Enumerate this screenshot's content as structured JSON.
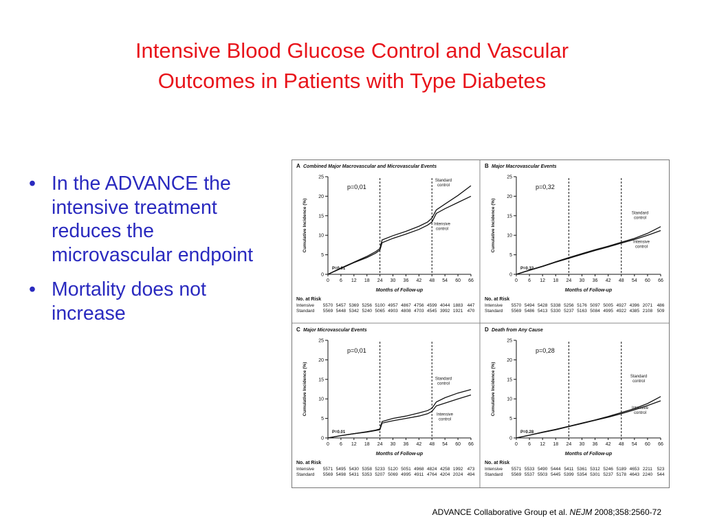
{
  "slide": {
    "title_line1": "Intensive Blood Glucose Control and Vascular",
    "title_line2": "Outcomes in Patients with Type Diabetes",
    "bullets": [
      "In the ADVANCE the intensive treatment reduces the microvascular endpoint",
      "Mortality does not increase"
    ],
    "citation": {
      "authors": "ADVANCE Collaborative Group  et al.",
      "journal": "NEJM",
      "ref": "2008;358:2560-72"
    }
  },
  "colors": {
    "title": "#e8141b",
    "bullet_text": "#2a2abf",
    "lines": "#111111"
  },
  "chart_data": [
    {
      "type": "line",
      "panel": "A",
      "title": "Combined Major Macrovascular and Microvascular Events",
      "xlabel": "Months of Follow-up",
      "ylabel": "Cumulative Incidence (%)",
      "xlim": [
        0,
        66
      ],
      "ylim": [
        0,
        25
      ],
      "xticks": [
        0,
        6,
        12,
        18,
        24,
        30,
        36,
        42,
        48,
        54,
        60,
        66
      ],
      "yticks": [
        0,
        5,
        10,
        15,
        20,
        25
      ],
      "vlines": [
        24,
        48
      ],
      "p_label": "p=0,01",
      "p_inner": "P=0.01",
      "series": [
        {
          "name": "Standard control",
          "x": [
            0,
            6,
            12,
            18,
            22,
            24,
            25,
            30,
            36,
            42,
            46,
            48,
            50,
            54,
            60,
            66
          ],
          "y": [
            0,
            1.6,
            3.1,
            4.6,
            5.8,
            6.6,
            8.8,
            9.9,
            11.0,
            12.3,
            13.4,
            14.4,
            16.5,
            18.0,
            20.2,
            22.7
          ]
        },
        {
          "name": "Intensive control",
          "x": [
            0,
            6,
            12,
            18,
            22,
            24,
            25,
            30,
            36,
            42,
            46,
            48,
            50,
            54,
            60,
            66
          ],
          "y": [
            0,
            1.5,
            3.0,
            4.3,
            5.4,
            6.2,
            8.1,
            9.2,
            10.3,
            11.5,
            12.6,
            13.4,
            15.6,
            16.8,
            18.4,
            20.0
          ]
        }
      ],
      "at_risk": {
        "header": "No. at Risk",
        "rows": [
          {
            "label": "Intensive",
            "values": [
              "5570",
              "5457",
              "5369",
              "5256",
              "5100",
              "4957",
              "4867",
              "4756",
              "4599",
              "4044",
              "1883",
              "447"
            ]
          },
          {
            "label": "Standard",
            "values": [
              "5569",
              "5448",
              "5342",
              "5240",
              "5065",
              "4903",
              "4808",
              "4703",
              "4545",
              "3992",
              "1921",
              "470"
            ]
          }
        ]
      }
    },
    {
      "type": "line",
      "panel": "B",
      "title": "Major Macrovascular Events",
      "xlabel": "Months of Follow-up",
      "ylabel": "Cumulative Incidence (%)",
      "xlim": [
        0,
        66
      ],
      "ylim": [
        0,
        25
      ],
      "xticks": [
        0,
        6,
        12,
        18,
        24,
        30,
        36,
        42,
        48,
        54,
        60,
        66
      ],
      "yticks": [
        0,
        5,
        10,
        15,
        20,
        25
      ],
      "vlines": [
        24,
        48
      ],
      "p_label": "p=0,32",
      "p_inner": "P=0.32",
      "series": [
        {
          "name": "Standard control",
          "x": [
            0,
            6,
            12,
            18,
            24,
            30,
            36,
            42,
            48,
            54,
            60,
            66
          ],
          "y": [
            0,
            1.1,
            2.1,
            3.2,
            4.3,
            5.3,
            6.3,
            7.2,
            8.2,
            9.2,
            10.5,
            12.2
          ]
        },
        {
          "name": "Intensive control",
          "x": [
            0,
            6,
            12,
            18,
            24,
            30,
            36,
            42,
            48,
            54,
            60,
            66
          ],
          "y": [
            0,
            1.0,
            2.0,
            3.1,
            4.1,
            5.1,
            6.1,
            7.0,
            8.0,
            8.9,
            10.0,
            11.2
          ]
        }
      ],
      "at_risk": {
        "header": "No. at Risk",
        "rows": [
          {
            "label": "Intensive",
            "values": [
              "5570",
              "5494",
              "5428",
              "5338",
              "5256",
              "5176",
              "5097",
              "5005",
              "4927",
              "4396",
              "2071",
              "486"
            ]
          },
          {
            "label": "Standard",
            "values": [
              "5569",
              "5486",
              "5413",
              "5330",
              "5237",
              "5163",
              "5084",
              "4995",
              "4922",
              "4385",
              "2108",
              "509"
            ]
          }
        ]
      }
    },
    {
      "type": "line",
      "panel": "C",
      "title": "Major Microvascular Events",
      "xlabel": "Months of Follow-up",
      "ylabel": "Cumulative Incidence (%)",
      "xlim": [
        0,
        66
      ],
      "ylim": [
        0,
        25
      ],
      "xticks": [
        0,
        6,
        12,
        18,
        24,
        30,
        36,
        42,
        48,
        54,
        60,
        66
      ],
      "yticks": [
        0,
        5,
        10,
        15,
        20,
        25
      ],
      "vlines": [
        24,
        48
      ],
      "p_label": "p=0,01",
      "p_inner": "P=0.01",
      "series": [
        {
          "name": "Standard control",
          "x": [
            0,
            6,
            12,
            18,
            22,
            24,
            25,
            30,
            36,
            42,
            46,
            48,
            50,
            54,
            60,
            66
          ],
          "y": [
            0,
            0.6,
            1.1,
            1.6,
            2.0,
            2.3,
            4.2,
            5.0,
            5.6,
            6.4,
            7.0,
            7.6,
            9.2,
            10.3,
            11.5,
            12.4
          ]
        },
        {
          "name": "Intensive control",
          "x": [
            0,
            6,
            12,
            18,
            22,
            24,
            25,
            30,
            36,
            42,
            46,
            48,
            50,
            54,
            60,
            66
          ],
          "y": [
            0,
            0.6,
            1.1,
            1.5,
            1.9,
            2.1,
            3.8,
            4.4,
            5.0,
            5.6,
            6.2,
            6.8,
            8.2,
            8.9,
            10.0,
            11.0
          ]
        }
      ],
      "at_risk": {
        "header": "No. at Risk",
        "rows": [
          {
            "label": "Intensive",
            "values": [
              "5571",
              "5495",
              "5430",
              "5358",
              "5233",
              "5120",
              "5051",
              "4968",
              "4824",
              "4258",
              "1992",
              "473"
            ]
          },
          {
            "label": "Standard",
            "values": [
              "5569",
              "5498",
              "5431",
              "5353",
              "5207",
              "5069",
              "4995",
              "4911",
              "4764",
              "4204",
              "2024",
              "494"
            ]
          }
        ]
      }
    },
    {
      "type": "line",
      "panel": "D",
      "title": "Death from Any Cause",
      "xlabel": "Months of Follow-up",
      "ylabel": "Cumulative Incidence (%)",
      "xlim": [
        0,
        66
      ],
      "ylim": [
        0,
        25
      ],
      "xticks": [
        0,
        6,
        12,
        18,
        24,
        30,
        36,
        42,
        48,
        54,
        60,
        66
      ],
      "yticks": [
        0,
        5,
        10,
        15,
        20,
        25
      ],
      "vlines": [
        24,
        48
      ],
      "p_label": "p=0,28",
      "p_inner": "P=0.28",
      "series": [
        {
          "name": "Standard control",
          "x": [
            0,
            6,
            12,
            18,
            24,
            30,
            36,
            42,
            48,
            54,
            60,
            66
          ],
          "y": [
            0,
            0.7,
            1.5,
            2.2,
            3.0,
            3.8,
            4.6,
            5.5,
            6.5,
            7.5,
            8.8,
            10.6
          ]
        },
        {
          "name": "Intensive control",
          "x": [
            0,
            6,
            12,
            18,
            24,
            30,
            36,
            42,
            48,
            54,
            60,
            66
          ],
          "y": [
            0,
            0.7,
            1.4,
            2.1,
            2.9,
            3.7,
            4.5,
            5.3,
            6.2,
            7.2,
            8.3,
            9.5
          ]
        }
      ],
      "at_risk": {
        "header": "No. at Risk",
        "rows": [
          {
            "label": "Intensive",
            "values": [
              "5571",
              "5533",
              "5490",
              "5444",
              "5411",
              "5361",
              "5312",
              "5246",
              "5189",
              "4653",
              "2211",
              "523"
            ]
          },
          {
            "label": "Standard",
            "values": [
              "5569",
              "5537",
              "5503",
              "5445",
              "5399",
              "5354",
              "5301",
              "5237",
              "5178",
              "4643",
              "2240",
              "544"
            ]
          }
        ]
      }
    }
  ]
}
